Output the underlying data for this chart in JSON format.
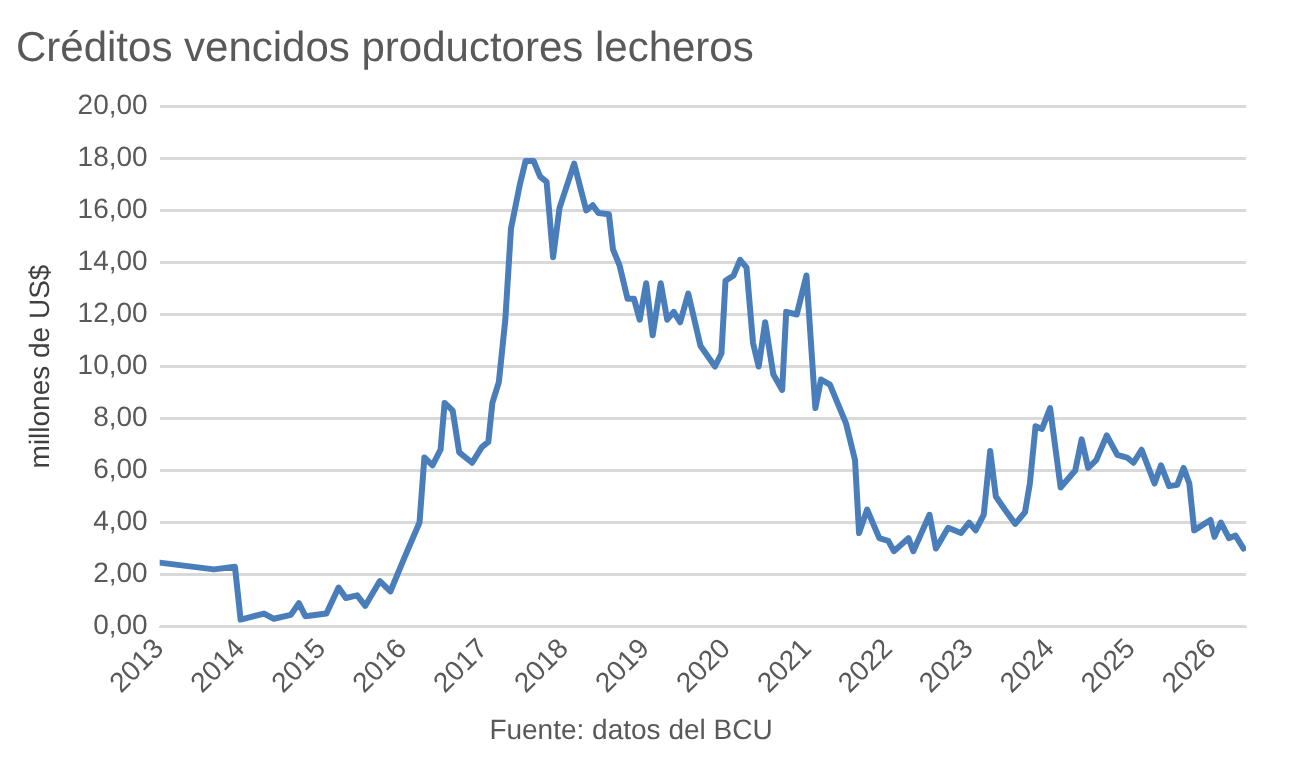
{
  "chart_data": {
    "type": "line",
    "title": "Créditos vencidos productores lecheros",
    "ylabel": "millones de US$",
    "annotations": [
      "Fuente: datos del BCU"
    ],
    "x": [
      2013.0,
      2013.67,
      2013.93,
      2014.0,
      2014.29,
      2014.41,
      2014.62,
      2014.72,
      2014.8,
      2015.06,
      2015.21,
      2015.3,
      2015.44,
      2015.54,
      2015.72,
      2015.85,
      2016.03,
      2016.21,
      2016.27,
      2016.37,
      2016.47,
      2016.52,
      2016.62,
      2016.7,
      2016.86,
      2016.98,
      2017.06,
      2017.11,
      2017.19,
      2017.27,
      2017.34,
      2017.45,
      2017.52,
      2017.62,
      2017.7,
      2017.78,
      2017.86,
      2017.94,
      2018.12,
      2018.27,
      2018.35,
      2018.42,
      2018.55,
      2018.6,
      2018.68,
      2018.78,
      2018.86,
      2018.93,
      2019.01,
      2019.09,
      2019.19,
      2019.27,
      2019.35,
      2019.43,
      2019.53,
      2019.68,
      2019.86,
      2019.94,
      2019.99,
      2020.09,
      2020.17,
      2020.25,
      2020.33,
      2020.4,
      2020.48,
      2020.58,
      2020.69,
      2020.74,
      2020.87,
      2020.99,
      2021.1,
      2021.17,
      2021.28,
      2021.48,
      2021.59,
      2021.64,
      2021.74,
      2021.89,
      2022.0,
      2022.07,
      2022.25,
      2022.31,
      2022.51,
      2022.59,
      2022.74,
      2022.9,
      2023.0,
      2023.08,
      2023.18,
      2023.26,
      2023.33,
      2023.44,
      2023.57,
      2023.69,
      2023.75,
      2023.82,
      2023.9,
      2024.0,
      2024.13,
      2024.31,
      2024.39,
      2024.47,
      2024.57,
      2024.7,
      2024.83,
      2024.95,
      2025.03,
      2025.13,
      2025.29,
      2025.37,
      2025.47,
      2025.57,
      2025.65,
      2025.72,
      2025.78,
      2025.98,
      2026.03,
      2026.11,
      2026.21,
      2026.29,
      2026.39
    ],
    "series": [
      {
        "color": "#4a7ebb",
        "values": [
          2.46,
          2.2,
          2.3,
          0.27,
          0.5,
          0.3,
          0.45,
          0.9,
          0.4,
          0.5,
          1.5,
          1.1,
          1.2,
          0.8,
          1.75,
          1.35,
          2.7,
          4.0,
          6.5,
          6.2,
          6.8,
          8.6,
          8.3,
          6.7,
          6.3,
          6.9,
          7.1,
          8.6,
          9.4,
          11.8,
          15.3,
          17.0,
          17.9,
          17.9,
          17.3,
          17.1,
          14.2,
          16.1,
          17.8,
          16.0,
          16.2,
          15.9,
          15.85,
          14.5,
          13.9,
          12.6,
          12.6,
          11.8,
          13.2,
          11.2,
          13.2,
          11.8,
          12.1,
          11.7,
          12.8,
          10.8,
          10.0,
          10.5,
          13.3,
          13.5,
          14.1,
          13.8,
          10.9,
          10.0,
          11.7,
          9.7,
          9.1,
          12.1,
          12.0,
          13.5,
          8.4,
          9.5,
          9.3,
          7.8,
          6.4,
          3.6,
          4.5,
          3.4,
          3.3,
          2.9,
          3.4,
          2.9,
          4.3,
          3.0,
          3.8,
          3.6,
          4.0,
          3.7,
          4.3,
          6.75,
          5.0,
          4.5,
          3.95,
          4.4,
          5.5,
          7.7,
          7.6,
          8.4,
          5.35,
          6.0,
          7.2,
          6.1,
          6.4,
          7.35,
          6.6,
          6.5,
          6.3,
          6.8,
          5.5,
          6.2,
          5.4,
          5.45,
          6.1,
          5.5,
          3.7,
          4.1,
          3.45,
          4.0,
          3.4,
          3.5,
          3.0
        ]
      }
    ],
    "xlim": [
      2013,
      2026.42
    ],
    "xticks": [
      2013,
      2014,
      2015,
      2016,
      2017,
      2018,
      2019,
      2020,
      2021,
      2022,
      2023,
      2024,
      2025,
      2026
    ],
    "ylim": [
      0,
      20
    ],
    "yticks": [
      {
        "value": 0,
        "label": "0,00"
      },
      {
        "value": 2,
        "label": "2,00"
      },
      {
        "value": 4,
        "label": "4,00"
      },
      {
        "value": 6,
        "label": "6,00"
      },
      {
        "value": 8,
        "label": "8,00"
      },
      {
        "value": 10,
        "label": "10,00"
      },
      {
        "value": 12,
        "label": "12,00"
      },
      {
        "value": 14,
        "label": "14,00"
      },
      {
        "value": 16,
        "label": "16,00"
      },
      {
        "value": 18,
        "label": "18,00"
      },
      {
        "value": 20,
        "label": "20,00"
      }
    ],
    "grid": "y",
    "marker": "none",
    "line_style": "solid"
  }
}
